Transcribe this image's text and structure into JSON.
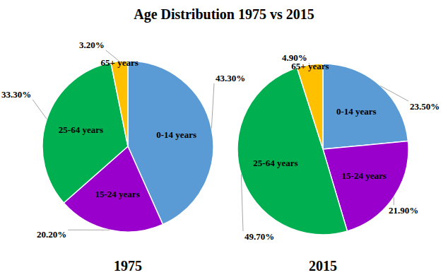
{
  "title": "Age Distribution 1975 vs 2015",
  "chart_data": [
    {
      "type": "pie",
      "title": "1975",
      "categories": [
        "0-14 years",
        "15-24 years",
        "25-64 years",
        "65+ years"
      ],
      "values": [
        43.3,
        20.2,
        33.3,
        3.2
      ],
      "value_labels": [
        "43.30%",
        "20.20%",
        "33.30%",
        "3.20%"
      ],
      "colors": [
        "#5b9bd5",
        "#9900cc",
        "#00b050",
        "#ffc000"
      ],
      "data_labels": true
    },
    {
      "type": "pie",
      "title": "2015",
      "categories": [
        "0-14 years",
        "15-24 years",
        "25-64 years",
        "65+ years"
      ],
      "values": [
        23.5,
        21.9,
        49.7,
        4.9
      ],
      "value_labels": [
        "23.50%",
        "21.90%",
        "49.70%",
        "4.90%"
      ],
      "colors": [
        "#5b9bd5",
        "#9900cc",
        "#00b050",
        "#ffc000"
      ],
      "data_labels": true
    }
  ]
}
